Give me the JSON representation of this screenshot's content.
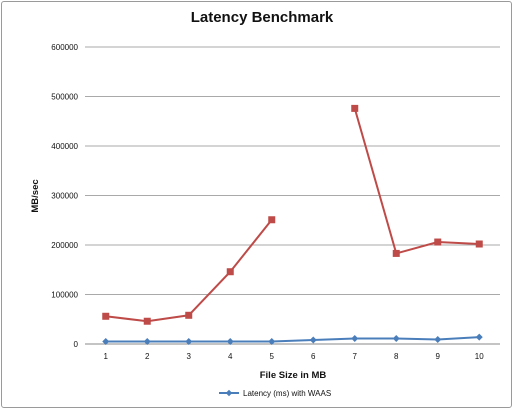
{
  "chart_data": {
    "type": "line",
    "title": "Latency Benchmark",
    "xlabel": "File Size in MB",
    "ylabel": "MB/sec",
    "categories": [
      "1",
      "2",
      "3",
      "4",
      "5",
      "6",
      "7",
      "8",
      "9",
      "10"
    ],
    "ylim": [
      0,
      600000
    ],
    "yticks": [
      "0",
      "100000",
      "200000",
      "300000",
      "400000",
      "500000",
      "600000"
    ],
    "grid": true,
    "legend_position": "bottom",
    "series": [
      {
        "name": "Latency (ms) with WAAS",
        "color": "#4a7ebb",
        "marker": "diamond",
        "show_in_legend": true,
        "values": [
          5000,
          5000,
          5000,
          5000,
          5000,
          8000,
          11000,
          11000,
          9000,
          14000
        ]
      },
      {
        "name": "",
        "color": "#be4b48",
        "marker": "square",
        "show_in_legend": false,
        "values": [
          56000,
          46000,
          58000,
          146000,
          251000,
          null,
          476000,
          183000,
          206000,
          202000
        ]
      }
    ]
  }
}
